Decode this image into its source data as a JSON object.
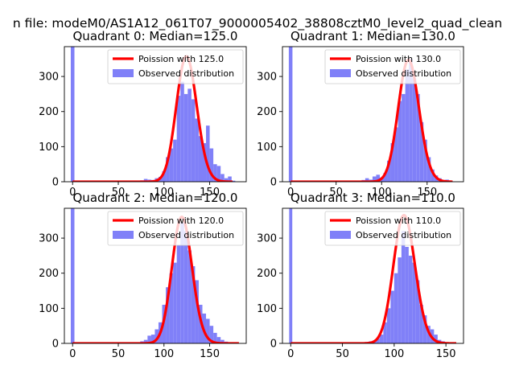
{
  "figure": {
    "suptitle": "n file: modeM0/AS1A12_061T07_9000005402_38808cztM0_level2_quad_clean"
  },
  "chart_data": [
    {
      "type": "bar",
      "title": "Quadrant 0: Median=125.0",
      "median": 125.0,
      "xlim": [
        -9,
        190
      ],
      "ylim": [
        0,
        385
      ],
      "xticks": [
        0,
        50,
        100,
        150
      ],
      "yticks": [
        0,
        100,
        200,
        300
      ],
      "bin_width": 4,
      "histogram": {
        "name": "Observed distribution",
        "color": "#8080f8",
        "bins": [
          [
            -2,
            2,
            385
          ],
          [
            74,
            78,
            4
          ],
          [
            78,
            82,
            8
          ],
          [
            82,
            86,
            6
          ],
          [
            86,
            90,
            5
          ],
          [
            90,
            94,
            10
          ],
          [
            94,
            98,
            14
          ],
          [
            98,
            102,
            30
          ],
          [
            102,
            106,
            70
          ],
          [
            106,
            110,
            95
          ],
          [
            110,
            114,
            120
          ],
          [
            114,
            118,
            245
          ],
          [
            118,
            122,
            285
          ],
          [
            122,
            126,
            250
          ],
          [
            126,
            130,
            265
          ],
          [
            130,
            134,
            235
          ],
          [
            134,
            138,
            180
          ],
          [
            138,
            142,
            130
          ],
          [
            142,
            146,
            110
          ],
          [
            146,
            150,
            160
          ],
          [
            150,
            154,
            95
          ],
          [
            154,
            158,
            50
          ],
          [
            158,
            162,
            45
          ],
          [
            162,
            166,
            22
          ],
          [
            166,
            170,
            10
          ],
          [
            170,
            174,
            15
          ],
          [
            174,
            178,
            3
          ]
        ]
      },
      "fit": {
        "name": "Poission with 125.0",
        "color": "#ff0000",
        "mean": 125.0,
        "peak": 357,
        "x_range": [
          0,
          175
        ]
      },
      "legend": {
        "position": "top-right"
      }
    },
    {
      "type": "bar",
      "title": "Quadrant 1: Median=130.0",
      "median": 130.0,
      "xlim": [
        -9,
        190
      ],
      "ylim": [
        0,
        385
      ],
      "xticks": [
        0,
        50,
        100,
        150
      ],
      "yticks": [
        0,
        100,
        200,
        300
      ],
      "bin_width": 4,
      "histogram": {
        "name": "Observed distribution",
        "color": "#8080f8",
        "bins": [
          [
            -2,
            2,
            385
          ],
          [
            78,
            82,
            5
          ],
          [
            82,
            86,
            10
          ],
          [
            86,
            90,
            6
          ],
          [
            90,
            94,
            15
          ],
          [
            94,
            98,
            20
          ],
          [
            98,
            102,
            12
          ],
          [
            102,
            106,
            25
          ],
          [
            106,
            110,
            60
          ],
          [
            110,
            114,
            110
          ],
          [
            114,
            118,
            155
          ],
          [
            118,
            122,
            230
          ],
          [
            122,
            126,
            250
          ],
          [
            126,
            130,
            320
          ],
          [
            130,
            134,
            350
          ],
          [
            134,
            138,
            295
          ],
          [
            138,
            142,
            250
          ],
          [
            142,
            146,
            170
          ],
          [
            146,
            150,
            120
          ],
          [
            150,
            154,
            70
          ],
          [
            154,
            158,
            35
          ],
          [
            158,
            162,
            18
          ],
          [
            162,
            166,
            10
          ],
          [
            166,
            170,
            5
          ],
          [
            170,
            174,
            6
          ],
          [
            174,
            178,
            3
          ]
        ]
      },
      "fit": {
        "name": "Poission with 130.0",
        "color": "#ff0000",
        "mean": 130.0,
        "peak": 347,
        "x_range": [
          0,
          178
        ]
      },
      "legend": {
        "position": "top-right"
      }
    },
    {
      "type": "bar",
      "title": "Quadrant 2: Median=120.0",
      "median": 120.0,
      "xlim": [
        -9,
        190
      ],
      "ylim": [
        0,
        385
      ],
      "xticks": [
        0,
        50,
        100,
        150
      ],
      "yticks": [
        0,
        100,
        200,
        300
      ],
      "bin_width": 4,
      "histogram": {
        "name": "Observed distribution",
        "color": "#8080f8",
        "bins": [
          [
            -2,
            2,
            385
          ],
          [
            74,
            78,
            6
          ],
          [
            78,
            82,
            10
          ],
          [
            82,
            86,
            22
          ],
          [
            86,
            90,
            25
          ],
          [
            90,
            94,
            40
          ],
          [
            94,
            98,
            60
          ],
          [
            98,
            102,
            110
          ],
          [
            102,
            106,
            160
          ],
          [
            106,
            110,
            200
          ],
          [
            110,
            114,
            230
          ],
          [
            114,
            118,
            280
          ],
          [
            118,
            122,
            345
          ],
          [
            122,
            126,
            320
          ],
          [
            126,
            130,
            265
          ],
          [
            130,
            134,
            220
          ],
          [
            134,
            138,
            180
          ],
          [
            138,
            142,
            110
          ],
          [
            142,
            146,
            85
          ],
          [
            146,
            150,
            70
          ],
          [
            150,
            154,
            50
          ],
          [
            154,
            158,
            30
          ],
          [
            158,
            162,
            18
          ],
          [
            162,
            166,
            10
          ],
          [
            166,
            170,
            5
          ],
          [
            170,
            174,
            3
          ],
          [
            174,
            178,
            2
          ]
        ]
      },
      "fit": {
        "name": "Poission with 120.0",
        "color": "#ff0000",
        "mean": 120.0,
        "peak": 360,
        "x_range": [
          0,
          182
        ]
      },
      "legend": {
        "position": "top-right"
      }
    },
    {
      "type": "bar",
      "title": "Quadrant 3: Median=110.0",
      "median": 110.0,
      "xlim": [
        -8,
        167
      ],
      "ylim": [
        0,
        385
      ],
      "xticks": [
        0,
        50,
        100,
        150
      ],
      "yticks": [
        0,
        100,
        200,
        300
      ],
      "bin_width": 3.5,
      "histogram": {
        "name": "Observed distribution",
        "color": "#8080f8",
        "bins": [
          [
            -1.5,
            1.5,
            385
          ],
          [
            72,
            75.5,
            4
          ],
          [
            75.5,
            79,
            6
          ],
          [
            79,
            82.5,
            8
          ],
          [
            82.5,
            86,
            14
          ],
          [
            86,
            89.5,
            25
          ],
          [
            89.5,
            93,
            60
          ],
          [
            93,
            96.5,
            100
          ],
          [
            96.5,
            100,
            150
          ],
          [
            100,
            103.5,
            200
          ],
          [
            103.5,
            107,
            245
          ],
          [
            107,
            110.5,
            320
          ],
          [
            110.5,
            114,
            275
          ],
          [
            114,
            117.5,
            250
          ],
          [
            117.5,
            121,
            230
          ],
          [
            121,
            124.5,
            180
          ],
          [
            124.5,
            128,
            110
          ],
          [
            128,
            131.5,
            80
          ],
          [
            131.5,
            135,
            50
          ],
          [
            135,
            138.5,
            40
          ],
          [
            138.5,
            142,
            25
          ],
          [
            142,
            145.5,
            10
          ],
          [
            145.5,
            149,
            6
          ],
          [
            149,
            152.5,
            3
          ],
          [
            152.5,
            156,
            2
          ]
        ]
      },
      "fit": {
        "name": "Poission with 110.0",
        "color": "#ff0000",
        "mean": 110.0,
        "peak": 365,
        "x_range": [
          0,
          160
        ]
      },
      "legend": {
        "position": "top-right"
      }
    }
  ]
}
